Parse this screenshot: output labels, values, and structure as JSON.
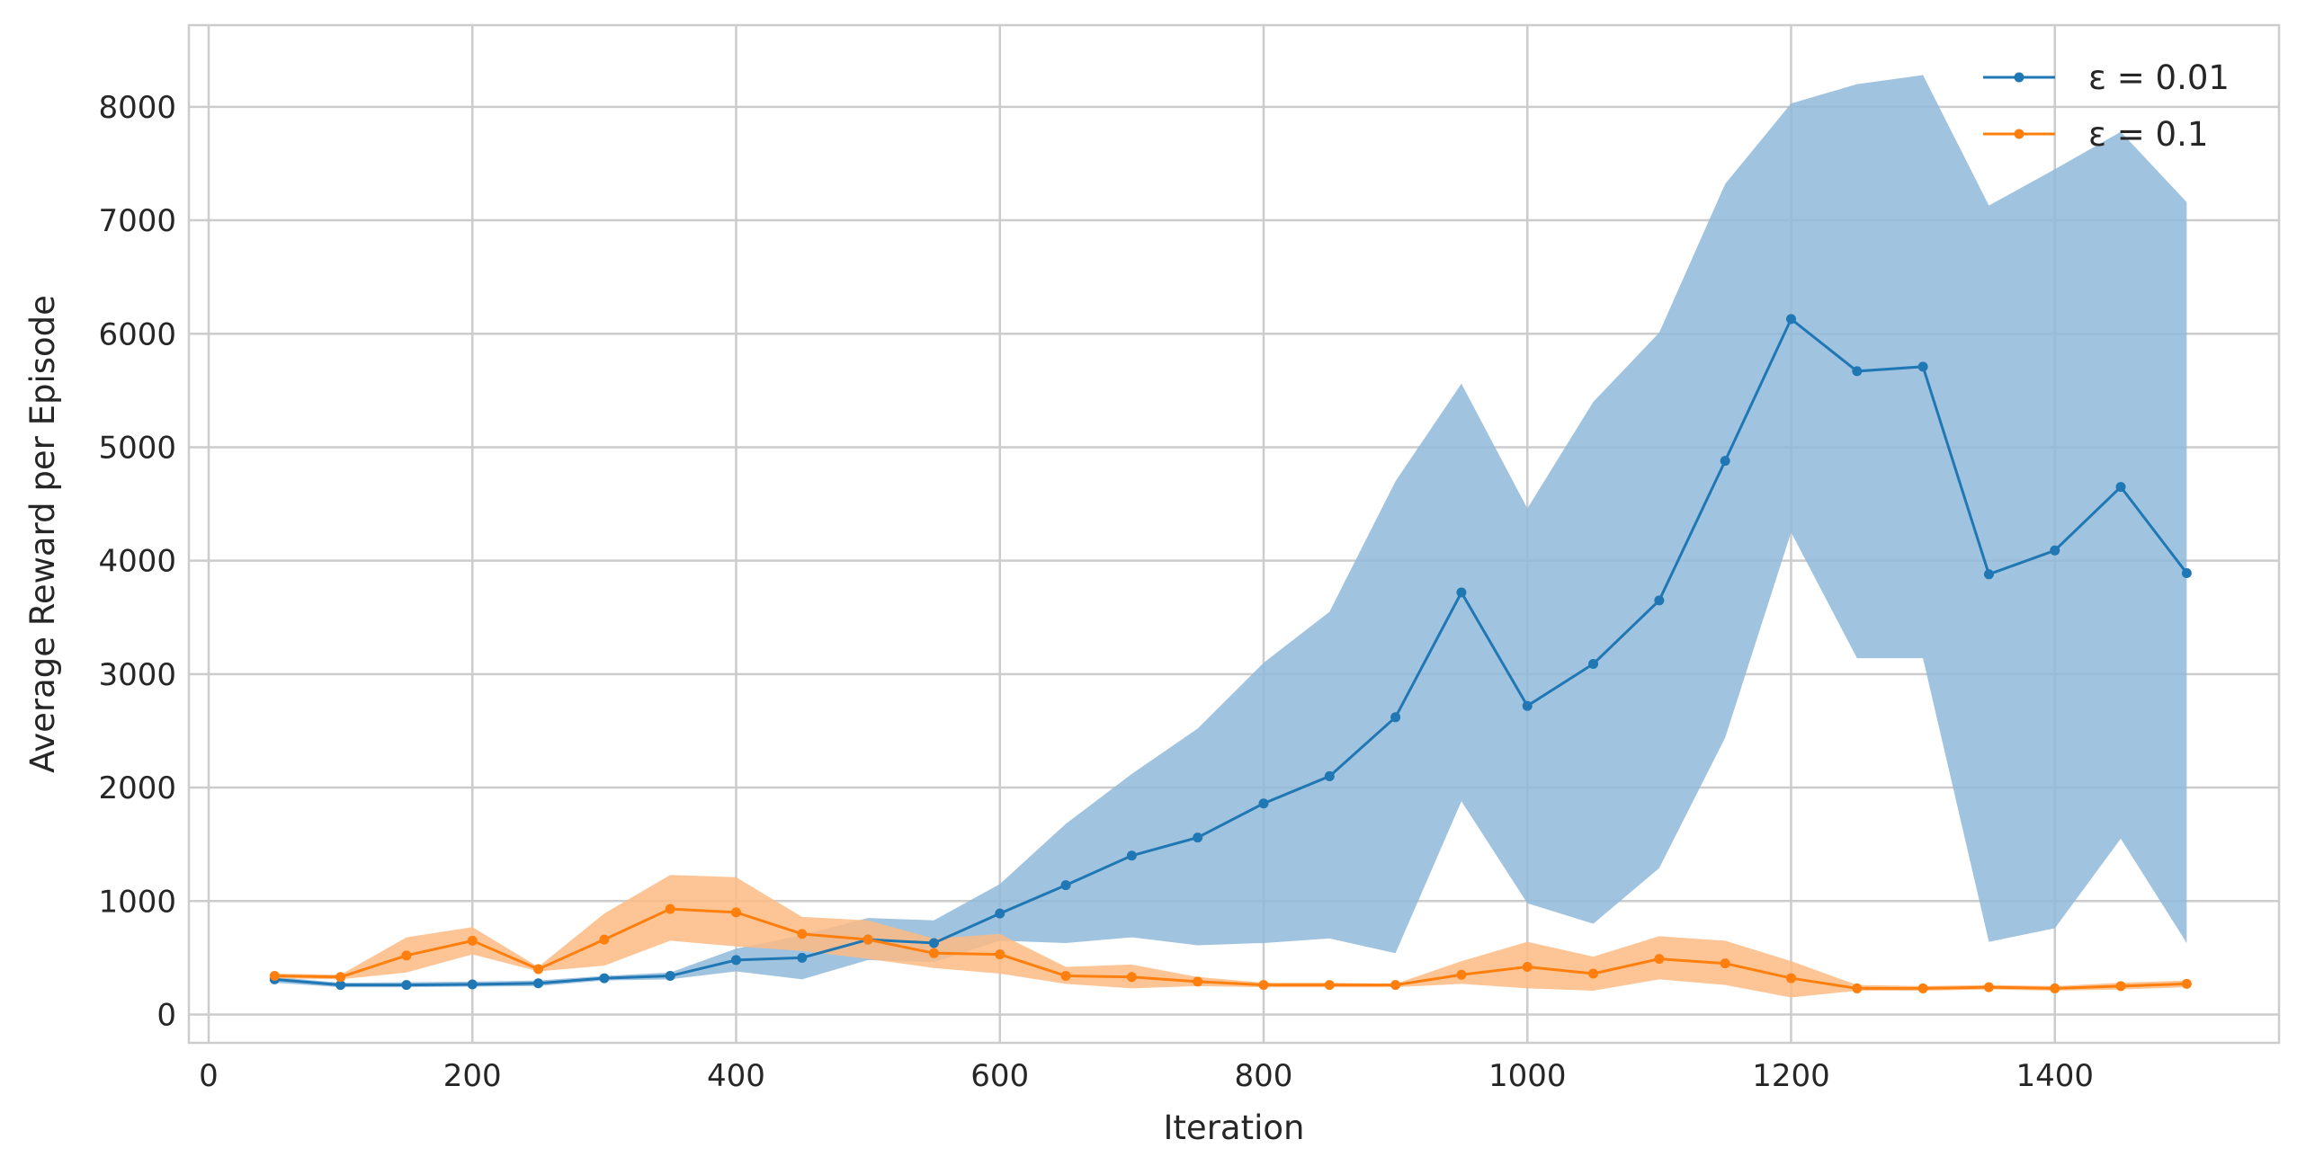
{
  "chart_data": {
    "type": "line",
    "xlabel": "Iteration",
    "ylabel": "Average Reward per Episode",
    "xlim": [
      -15,
      1570
    ],
    "ylim": [
      -250,
      8720
    ],
    "xticks": [
      0,
      200,
      400,
      600,
      800,
      1000,
      1200,
      1400
    ],
    "yticks": [
      0,
      1000,
      2000,
      3000,
      4000,
      5000,
      6000,
      7000,
      8000
    ],
    "grid": true,
    "legend_position": "top-right",
    "x": [
      50,
      100,
      150,
      200,
      250,
      300,
      350,
      400,
      450,
      500,
      550,
      600,
      650,
      700,
      750,
      800,
      850,
      900,
      950,
      1000,
      1050,
      1100,
      1150,
      1200,
      1250,
      1300,
      1350,
      1400,
      1450,
      1500
    ],
    "series": [
      {
        "name": "ε = 0.01",
        "color": "#1f77b4",
        "band_color": "#8fb8d9",
        "values": [
          310,
          260,
          260,
          265,
          275,
          320,
          340,
          480,
          500,
          660,
          630,
          890,
          1140,
          1400,
          1560,
          1860,
          2100,
          2620,
          3720,
          2720,
          3090,
          3650,
          4880,
          6130,
          5670,
          5710,
          3880,
          4090,
          4650,
          3890
        ],
        "upper": [
          330,
          280,
          285,
          290,
          300,
          340,
          370,
          580,
          700,
          850,
          830,
          1150,
          1680,
          2120,
          2520,
          3100,
          3550,
          4700,
          5560,
          4460,
          5400,
          6010,
          7320,
          8030,
          8200,
          8280,
          7130,
          7450,
          7780,
          7160
        ],
        "lower": [
          280,
          240,
          240,
          245,
          250,
          300,
          310,
          380,
          310,
          480,
          460,
          650,
          630,
          680,
          610,
          630,
          670,
          540,
          1880,
          980,
          800,
          1290,
          2440,
          4250,
          3140,
          3140,
          640,
          760,
          1550,
          630
        ]
      },
      {
        "name": "ε = 0.1",
        "color": "#ff7f0e",
        "band_color": "#fdbb84",
        "values": [
          340,
          330,
          520,
          650,
          400,
          660,
          930,
          900,
          710,
          660,
          540,
          530,
          340,
          330,
          290,
          260,
          260,
          260,
          350,
          420,
          360,
          490,
          450,
          320,
          230,
          230,
          240,
          230,
          250,
          270
        ],
        "upper": [
          360,
          350,
          680,
          770,
          420,
          890,
          1230,
          1210,
          860,
          830,
          670,
          710,
          420,
          440,
          330,
          280,
          280,
          270,
          470,
          640,
          510,
          690,
          650,
          470,
          260,
          250,
          260,
          250,
          280,
          300
        ],
        "lower": [
          320,
          310,
          370,
          530,
          380,
          430,
          650,
          600,
          560,
          490,
          410,
          360,
          270,
          230,
          250,
          240,
          240,
          240,
          270,
          230,
          210,
          310,
          260,
          150,
          210,
          210,
          220,
          210,
          220,
          240
        ]
      }
    ]
  }
}
